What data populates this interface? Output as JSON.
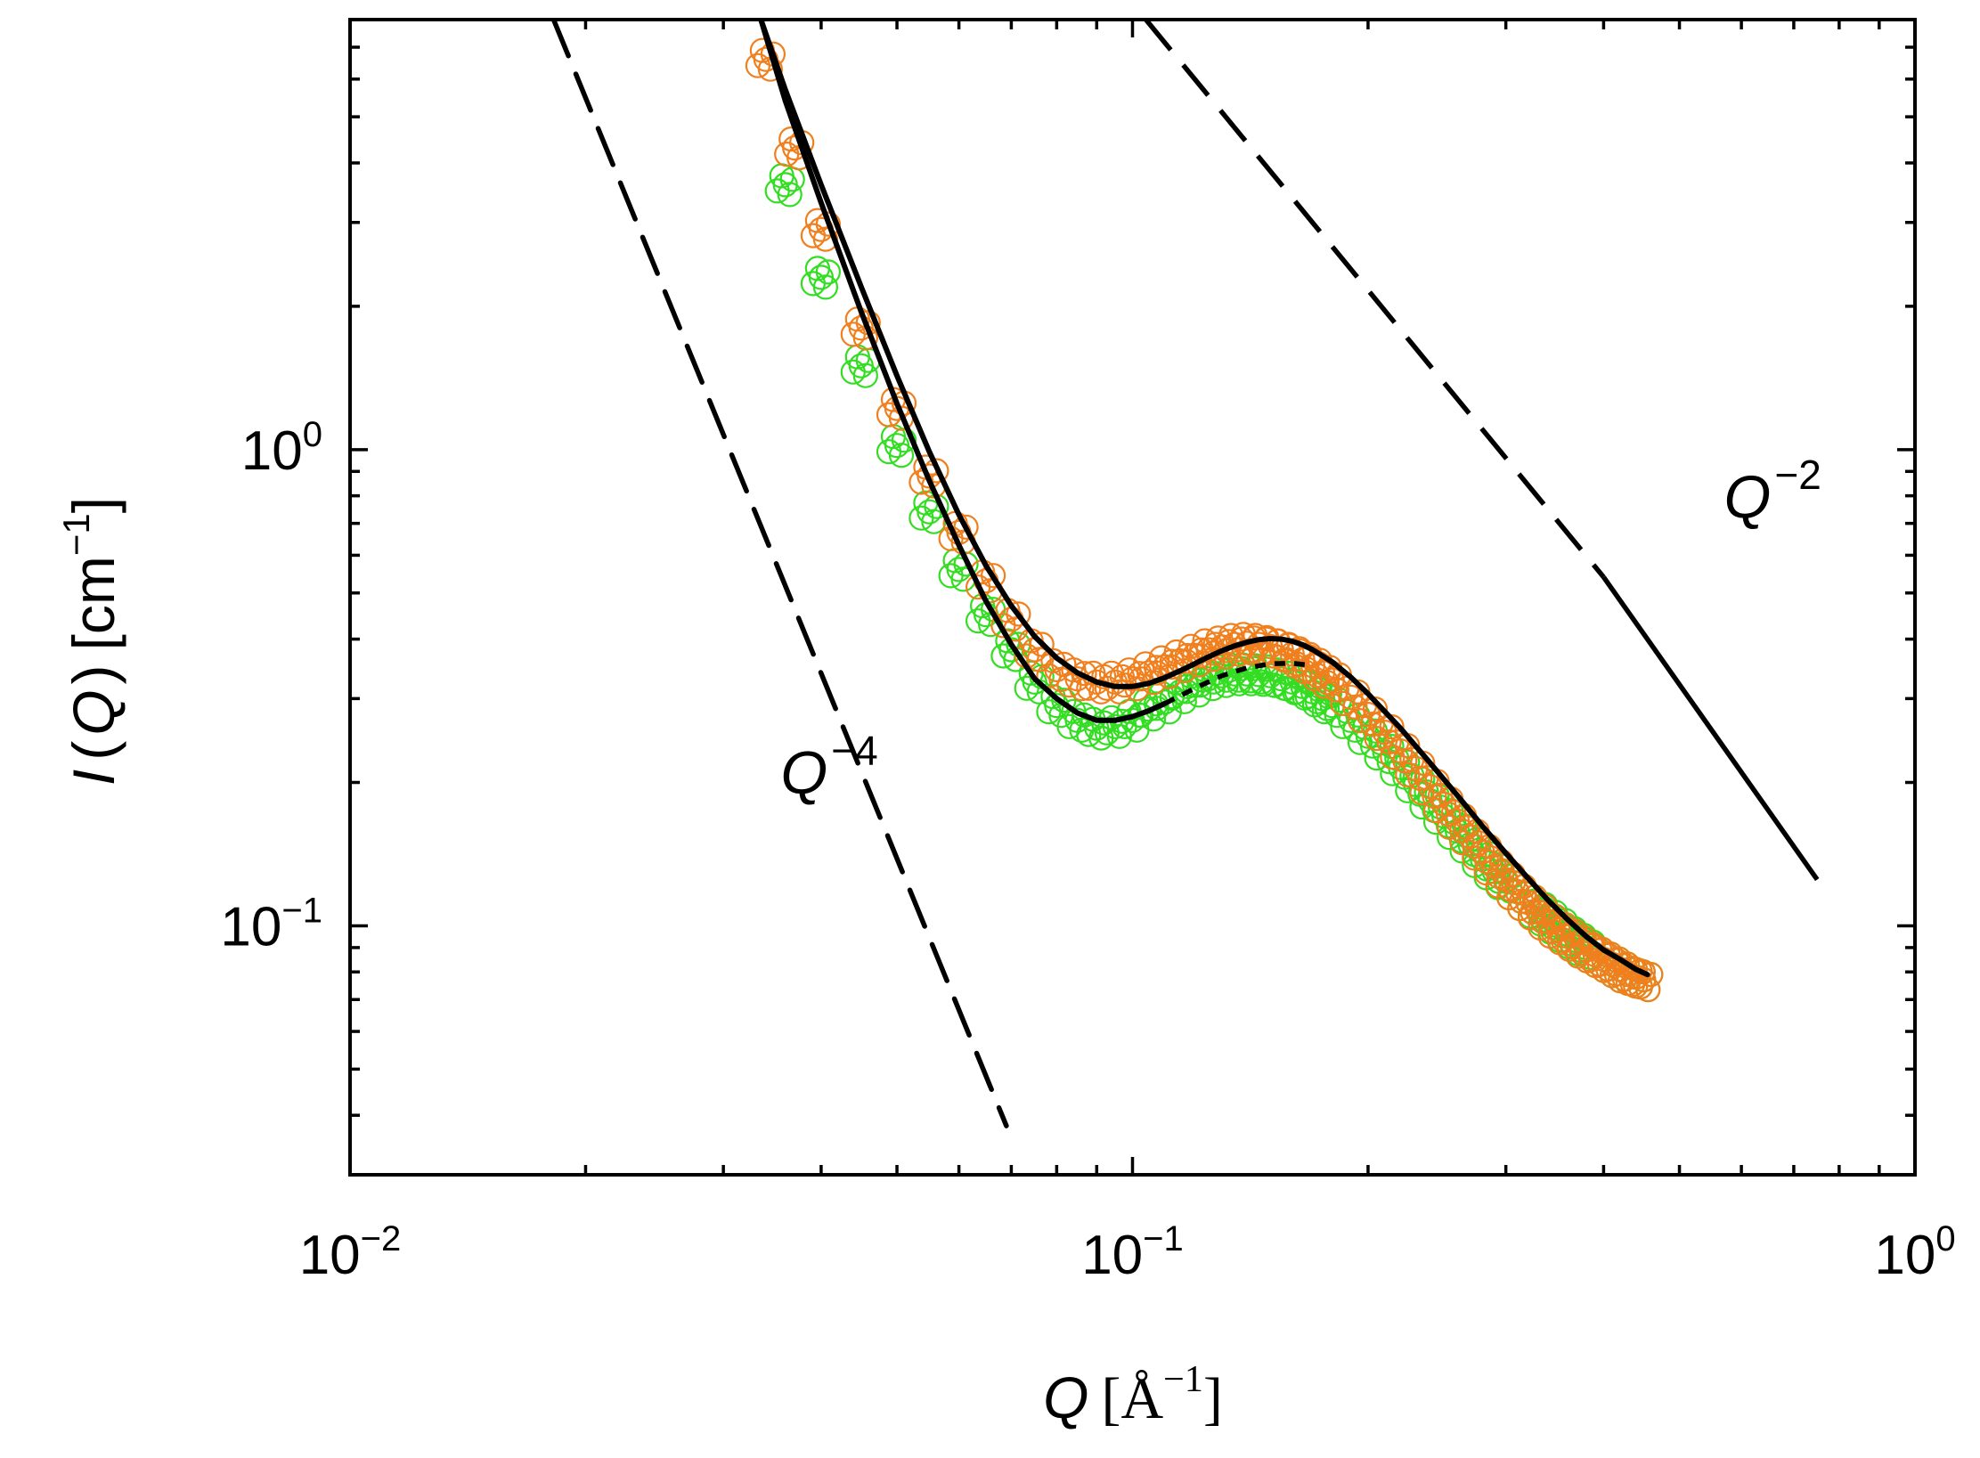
{
  "chart_data": {
    "type": "scatter",
    "title": "",
    "xscale": "log",
    "yscale": "log",
    "xlim": [
      0.01,
      1.0
    ],
    "ylim": [
      0.03,
      8.0
    ],
    "xlabel": {
      "symbol": "Q",
      "unit_open": "[Å",
      "unit_exp": "−1",
      "unit_close": "]"
    },
    "ylabel": {
      "symbol": "I",
      "arg_open": "(",
      "arg_symbol": "Q",
      "arg_close": ")",
      "unit_open": "[cm",
      "unit_exp": "−1",
      "unit_close": "]"
    },
    "x_ticks": [
      {
        "value": 0.01,
        "base": "10",
        "exp": "−2"
      },
      {
        "value": 0.1,
        "base": "10",
        "exp": "−1"
      },
      {
        "value": 1.0,
        "base": "10",
        "exp": "0"
      }
    ],
    "y_ticks": [
      {
        "value": 0.1,
        "base": "10",
        "exp": "−1"
      },
      {
        "value": 1.0,
        "base": "10",
        "exp": "0"
      }
    ],
    "series": [
      {
        "name": "green data",
        "kind": "markers",
        "marker": "open-circle",
        "color": "#33dd22",
        "x": [
          0.036,
          0.04,
          0.045,
          0.05,
          0.055,
          0.06,
          0.065,
          0.07,
          0.075,
          0.08,
          0.085,
          0.09,
          0.095,
          0.1,
          0.105,
          0.11,
          0.115,
          0.12,
          0.125,
          0.13,
          0.135,
          0.14,
          0.145,
          0.15,
          0.155,
          0.16,
          0.165,
          0.17,
          0.175,
          0.18,
          0.19,
          0.2,
          0.21,
          0.22,
          0.23,
          0.24,
          0.25,
          0.26,
          0.27,
          0.28,
          0.29,
          0.3,
          0.31,
          0.32,
          0.33,
          0.34,
          0.35,
          0.36,
          0.37,
          0.38,
          0.39,
          0.4,
          0.41,
          0.42,
          0.43,
          0.44,
          0.45
        ],
        "y": [
          3.6,
          2.3,
          1.5,
          1.02,
          0.74,
          0.56,
          0.45,
          0.38,
          0.325,
          0.29,
          0.27,
          0.26,
          0.262,
          0.27,
          0.285,
          0.295,
          0.31,
          0.32,
          0.33,
          0.335,
          0.338,
          0.338,
          0.337,
          0.335,
          0.33,
          0.325,
          0.318,
          0.31,
          0.3,
          0.29,
          0.27,
          0.25,
          0.232,
          0.215,
          0.198,
          0.183,
          0.17,
          0.158,
          0.148,
          0.138,
          0.13,
          0.124,
          0.118,
          0.112,
          0.108,
          0.104,
          0.1,
          0.096,
          0.093,
          0.09,
          0.087,
          0.085,
          0.083,
          0.081,
          0.079,
          0.078,
          0.077
        ]
      },
      {
        "name": "orange data",
        "kind": "markers",
        "marker": "open-circle",
        "color": "#f07f1e",
        "x": [
          0.034,
          0.037,
          0.04,
          0.045,
          0.05,
          0.055,
          0.06,
          0.065,
          0.07,
          0.075,
          0.08,
          0.085,
          0.09,
          0.095,
          0.1,
          0.105,
          0.11,
          0.115,
          0.12,
          0.125,
          0.13,
          0.135,
          0.14,
          0.145,
          0.15,
          0.155,
          0.16,
          0.165,
          0.17,
          0.175,
          0.18,
          0.19,
          0.2,
          0.21,
          0.22,
          0.23,
          0.24,
          0.25,
          0.26,
          0.27,
          0.28,
          0.29,
          0.3,
          0.31,
          0.32,
          0.33,
          0.34,
          0.35,
          0.36,
          0.37,
          0.38,
          0.39,
          0.4,
          0.41,
          0.42,
          0.43,
          0.44,
          0.45
        ],
        "y": [
          6.6,
          4.3,
          2.9,
          1.8,
          1.22,
          0.88,
          0.67,
          0.53,
          0.44,
          0.38,
          0.345,
          0.33,
          0.325,
          0.325,
          0.33,
          0.34,
          0.35,
          0.36,
          0.37,
          0.38,
          0.385,
          0.39,
          0.392,
          0.39,
          0.386,
          0.38,
          0.372,
          0.362,
          0.352,
          0.34,
          0.328,
          0.302,
          0.278,
          0.255,
          0.233,
          0.214,
          0.196,
          0.18,
          0.166,
          0.154,
          0.143,
          0.133,
          0.125,
          0.118,
          0.112,
          0.107,
          0.102,
          0.098,
          0.095,
          0.092,
          0.089,
          0.087,
          0.085,
          0.083,
          0.081,
          0.079,
          0.078,
          0.077
        ]
      },
      {
        "name": "fit upper",
        "kind": "line",
        "style": "solid",
        "color": "#000000",
        "x": [
          0.0335,
          0.036,
          0.04,
          0.045,
          0.05,
          0.055,
          0.06,
          0.065,
          0.07,
          0.075,
          0.08,
          0.085,
          0.09,
          0.095,
          0.1,
          0.105,
          0.11,
          0.115,
          0.12,
          0.125,
          0.13,
          0.135,
          0.14,
          0.145,
          0.15,
          0.155,
          0.16,
          0.165,
          0.17,
          0.18,
          0.19,
          0.2,
          0.22,
          0.24,
          0.26,
          0.28,
          0.3,
          0.32,
          0.34,
          0.36,
          0.38,
          0.4,
          0.42,
          0.44,
          0.455
        ],
        "y": [
          8.0,
          5.7,
          3.6,
          2.2,
          1.43,
          0.99,
          0.73,
          0.57,
          0.47,
          0.405,
          0.365,
          0.34,
          0.325,
          0.318,
          0.318,
          0.323,
          0.332,
          0.343,
          0.355,
          0.367,
          0.378,
          0.387,
          0.394,
          0.399,
          0.401,
          0.4,
          0.396,
          0.389,
          0.38,
          0.358,
          0.333,
          0.307,
          0.26,
          0.22,
          0.188,
          0.162,
          0.142,
          0.126,
          0.113,
          0.103,
          0.095,
          0.089,
          0.085,
          0.081,
          0.079
        ]
      },
      {
        "name": "fit lower",
        "kind": "line",
        "style": "solid",
        "color": "#000000",
        "x": [
          0.0335,
          0.036,
          0.04,
          0.045,
          0.05,
          0.055,
          0.06,
          0.065,
          0.07,
          0.075,
          0.08,
          0.085,
          0.09,
          0.095,
          0.1,
          0.105,
          0.11
        ],
        "y": [
          8.0,
          5.4,
          3.3,
          1.95,
          1.25,
          0.86,
          0.63,
          0.48,
          0.39,
          0.33,
          0.3,
          0.28,
          0.27,
          0.27,
          0.275,
          0.283,
          0.293
        ]
      },
      {
        "name": "fit lower continuation",
        "kind": "line",
        "style": "dotted",
        "color": "#000000",
        "x": [
          0.11,
          0.12,
          0.13,
          0.14,
          0.15,
          0.16,
          0.17
        ],
        "y": [
          0.293,
          0.315,
          0.335,
          0.348,
          0.355,
          0.356,
          0.352
        ]
      },
      {
        "name": "Q^-4 slope guide",
        "kind": "line",
        "style": "dashed",
        "color": "#000000",
        "x": [
          0.0182,
          0.069
        ],
        "y": [
          8.0,
          0.038
        ]
      },
      {
        "name": "Q^-2 slope guide",
        "kind": "line",
        "style": "dashed-then-solid",
        "color": "#000000",
        "x": [
          0.104,
          0.4,
          0.75
        ],
        "y": [
          8.0,
          0.54,
          0.125
        ]
      }
    ],
    "annotations": [
      {
        "name": "q-minus-4-label",
        "symbol": "Q",
        "exponent": "−4",
        "x": 0.0355,
        "y": 0.19
      },
      {
        "name": "q-minus-2-label",
        "symbol": "Q",
        "exponent": "−2",
        "x": 0.57,
        "y": 0.72
      }
    ]
  }
}
